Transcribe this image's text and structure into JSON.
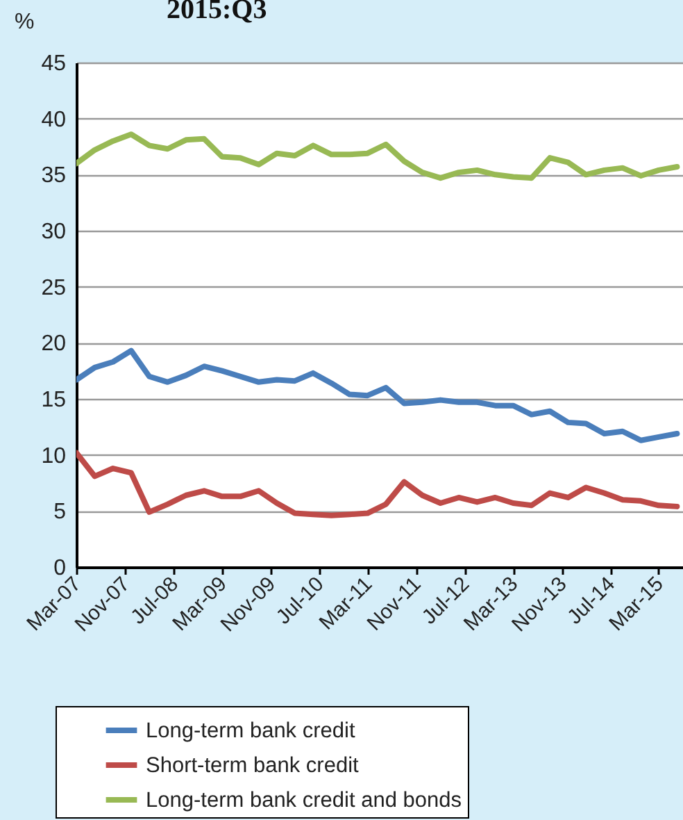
{
  "chart_data": {
    "type": "line",
    "title": "2015:Q3",
    "ylabel": "%",
    "x": [
      "2007-03",
      "2007-06",
      "2007-09",
      "2007-12",
      "2008-03",
      "2008-06",
      "2008-09",
      "2008-12",
      "2009-03",
      "2009-06",
      "2009-09",
      "2009-12",
      "2010-03",
      "2010-06",
      "2010-09",
      "2010-12",
      "2011-03",
      "2011-06",
      "2011-09",
      "2011-12",
      "2012-03",
      "2012-06",
      "2012-09",
      "2012-12",
      "2013-03",
      "2013-06",
      "2013-09",
      "2013-12",
      "2014-03",
      "2014-06",
      "2014-09",
      "2014-12",
      "2015-03",
      "2015-06"
    ],
    "series": [
      {
        "name": "Long-term bank credit",
        "color": "#4a7ebb",
        "values": [
          16.7,
          17.8,
          18.3,
          19.3,
          17.0,
          16.5,
          17.1,
          17.9,
          17.5,
          17.0,
          16.5,
          16.7,
          16.6,
          17.3,
          16.4,
          15.4,
          15.3,
          16.0,
          14.6,
          14.7,
          14.9,
          14.7,
          14.7,
          14.4,
          14.4,
          13.6,
          13.9,
          12.9,
          12.8,
          11.9,
          12.1,
          11.3,
          11.6,
          11.9
        ]
      },
      {
        "name": "Short-term bank credit",
        "color": "#be4b48",
        "values": [
          10.2,
          8.1,
          8.8,
          8.4,
          4.9,
          5.6,
          6.4,
          6.8,
          6.3,
          6.3,
          6.8,
          5.7,
          4.8,
          4.7,
          4.6,
          4.7,
          4.8,
          5.6,
          7.6,
          6.4,
          5.7,
          6.2,
          5.8,
          6.2,
          5.7,
          5.5,
          6.6,
          6.2,
          7.1,
          6.6,
          6.0,
          5.9,
          5.5,
          5.4
        ]
      },
      {
        "name": "Long-term bank credit and bonds",
        "color": "#98b954",
        "values": [
          36.0,
          37.2,
          38.0,
          38.6,
          37.6,
          37.3,
          38.1,
          38.2,
          36.6,
          36.5,
          35.9,
          36.9,
          36.7,
          37.6,
          36.8,
          36.8,
          36.9,
          37.7,
          36.2,
          35.2,
          34.7,
          35.2,
          35.4,
          35.0,
          34.8,
          34.7,
          36.5,
          36.1,
          35.0,
          35.4,
          35.6,
          34.9,
          35.4,
          35.7
        ]
      }
    ],
    "xlim": [
      "2007-03",
      "2015-07"
    ],
    "xticks": [
      {
        "value": "2007-03",
        "label": "Mar-07"
      },
      {
        "value": "2007-11",
        "label": "Nov-07"
      },
      {
        "value": "2008-07",
        "label": "Jul-08"
      },
      {
        "value": "2009-03",
        "label": "Mar-09"
      },
      {
        "value": "2009-11",
        "label": "Nov-09"
      },
      {
        "value": "2010-07",
        "label": "Jul-10"
      },
      {
        "value": "2011-03",
        "label": "Mar-11"
      },
      {
        "value": "2011-11",
        "label": "Nov-11"
      },
      {
        "value": "2012-07",
        "label": "Jul-12"
      },
      {
        "value": "2013-03",
        "label": "Mar-13"
      },
      {
        "value": "2013-11",
        "label": "Nov-13"
      },
      {
        "value": "2014-07",
        "label": "Jul-14"
      },
      {
        "value": "2015-03",
        "label": "Mar-15"
      }
    ],
    "ylim": [
      0,
      45
    ],
    "yticks": [
      0,
      5,
      10,
      15,
      20,
      25,
      30,
      35,
      40,
      45
    ],
    "grid": "y",
    "legend": "bottom",
    "marker": "none",
    "line_style": "solid"
  }
}
